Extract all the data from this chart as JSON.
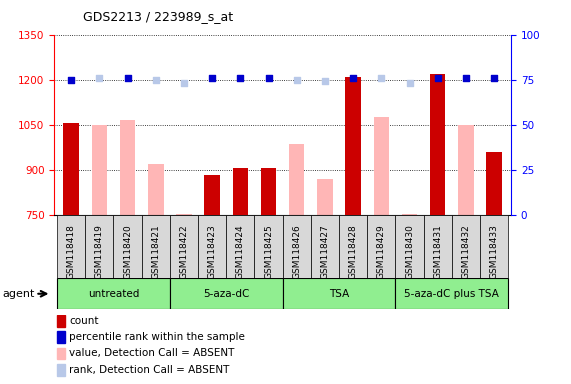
{
  "title": "GDS2213 / 223989_s_at",
  "samples": [
    "GSM118418",
    "GSM118419",
    "GSM118420",
    "GSM118421",
    "GSM118422",
    "GSM118423",
    "GSM118424",
    "GSM118425",
    "GSM118426",
    "GSM118427",
    "GSM118428",
    "GSM118429",
    "GSM118430",
    "GSM118431",
    "GSM118432",
    "GSM118433"
  ],
  "count_values": [
    1055,
    null,
    null,
    null,
    null,
    882,
    905,
    905,
    null,
    null,
    1210,
    null,
    null,
    1220,
    null,
    960
  ],
  "count_absent_values": [
    null,
    1050,
    1065,
    920,
    755,
    null,
    null,
    null,
    985,
    870,
    null,
    1075,
    755,
    null,
    1050,
    null
  ],
  "rank_values": [
    75,
    null,
    76,
    null,
    null,
    76,
    76,
    76,
    null,
    null,
    76,
    null,
    null,
    76,
    76,
    76
  ],
  "rank_absent_values": [
    null,
    76,
    null,
    75,
    73,
    null,
    null,
    null,
    75,
    74,
    null,
    76,
    73,
    null,
    null,
    null
  ],
  "ylim_left": [
    750,
    1350
  ],
  "ylim_right": [
    0,
    100
  ],
  "yticks_left": [
    750,
    900,
    1050,
    1200,
    1350
  ],
  "yticks_right": [
    0,
    25,
    50,
    75,
    100
  ],
  "group_boundaries": [
    {
      "start": 0,
      "end": 3,
      "label": "untreated"
    },
    {
      "start": 4,
      "end": 7,
      "label": "5-aza-dC"
    },
    {
      "start": 8,
      "end": 11,
      "label": "TSA"
    },
    {
      "start": 12,
      "end": 15,
      "label": "5-aza-dC plus TSA"
    }
  ],
  "bar_width": 0.55,
  "count_color": "#cc0000",
  "count_absent_color": "#ffb6b6",
  "rank_color": "#0000cc",
  "rank_absent_color": "#b8c8e8",
  "plot_bg_color": "#ffffff",
  "tick_bg_color": "#d0d0d0",
  "group_color": "#90ee90",
  "legend_items": [
    {
      "label": "count",
      "color": "#cc0000"
    },
    {
      "label": "percentile rank within the sample",
      "color": "#0000cc"
    },
    {
      "label": "value, Detection Call = ABSENT",
      "color": "#ffb6b6"
    },
    {
      "label": "rank, Detection Call = ABSENT",
      "color": "#b8c8e8"
    }
  ]
}
